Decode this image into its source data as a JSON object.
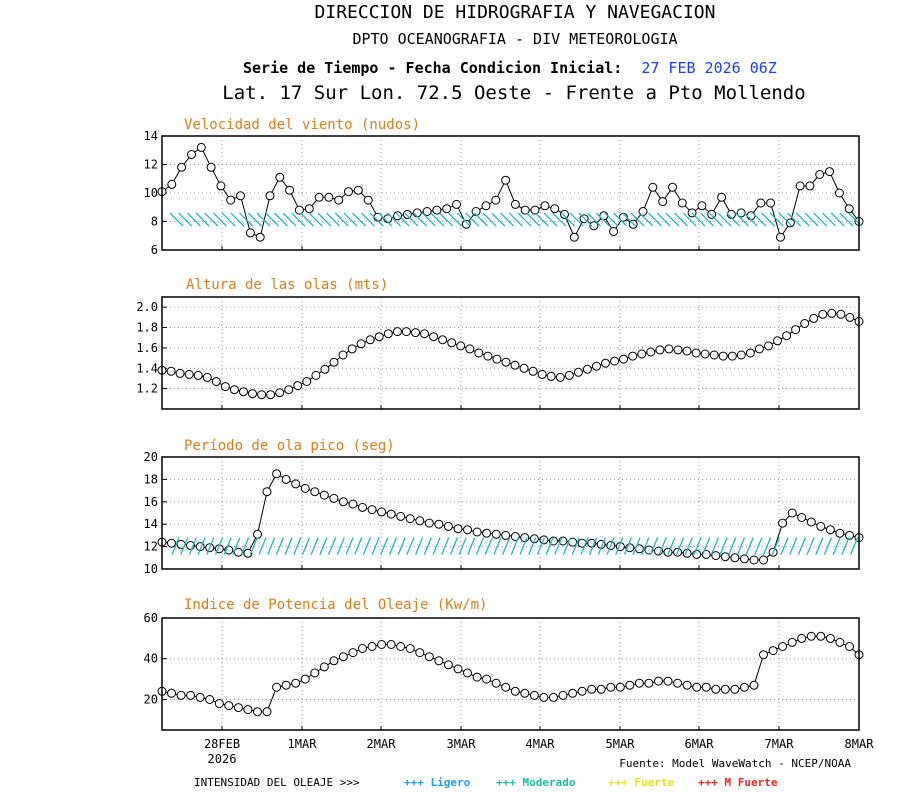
{
  "header": {
    "line1": "DIRECCION DE HIDROGRAFIA Y NAVEGACION",
    "line2": "DPTO OCEANOGRAFIA - DIV METEOROLOGIA",
    "line3_label": "Serie de Tiempo - Fecha Condicion Inicial:",
    "line3_date": "27 FEB 2026 06Z",
    "line4": "Lat. 17 Sur  Lon. 72.5 Oeste - Frente a Pto Mollendo"
  },
  "colors": {
    "title_orange": "#e07b19",
    "date_blue": "#1a3cff",
    "arrow_teal": "#19b9c0",
    "ligero": "#1e9bff",
    "moderado": "#19c0a6",
    "fuerte": "#e8e021",
    "m_fuerte": "#ff2020"
  },
  "x_axis": {
    "ticks": [
      "28FEB",
      "1MAR",
      "2MAR",
      "3MAR",
      "4MAR",
      "5MAR",
      "6MAR",
      "7MAR",
      "8MAR"
    ],
    "year": "2026"
  },
  "footer": {
    "source": "Fuente: Model WaveWatch - NCEP/NOAA",
    "legend_label": "INTENSIDAD DEL OLEAJE >>>",
    "legend_items": [
      {
        "label": "+++ Ligero",
        "color": "#1e9bff"
      },
      {
        "label": "+++ Moderado",
        "color": "#19c0a6"
      },
      {
        "label": "+++ Fuerte",
        "color": "#e8e021"
      },
      {
        "label": "+++ M Fuerte",
        "color": "#ff2020"
      }
    ]
  },
  "chart_data": [
    {
      "type": "line",
      "title": "Velocidad del viento (nudos)",
      "ylim": [
        6,
        14
      ],
      "yticks": [
        6,
        8,
        10,
        12,
        14
      ],
      "grid": true,
      "values": [
        10.1,
        10.6,
        11.8,
        12.7,
        13.2,
        11.8,
        10.5,
        9.5,
        9.8,
        7.2,
        6.9,
        9.8,
        11.1,
        10.2,
        8.8,
        8.9,
        9.7,
        9.7,
        9.5,
        10.1,
        10.2,
        9.5,
        8.3,
        8.2,
        8.4,
        8.5,
        8.6,
        8.7,
        8.8,
        8.9,
        9.2,
        7.8,
        8.7,
        9.1,
        9.5,
        10.9,
        9.2,
        8.8,
        8.8,
        9.1,
        8.9,
        8.5,
        6.9,
        8.2,
        7.7,
        8.4,
        7.3,
        8.3,
        7.8,
        8.7,
        10.4,
        9.4,
        10.4,
        9.3,
        8.6,
        9.1,
        8.5,
        9.7,
        8.5,
        8.6,
        8.4,
        9.3,
        9.3,
        6.9,
        7.9,
        10.5,
        10.5,
        11.3,
        11.5,
        10.0,
        8.9,
        8.0
      ],
      "arrows": "wind-direction"
    },
    {
      "type": "line",
      "title": "Altura de las olas (mts)",
      "ylim": [
        1.0,
        2.1
      ],
      "yticks": [
        1.2,
        1.4,
        1.6,
        1.8,
        2.0
      ],
      "grid": true,
      "values": [
        1.38,
        1.37,
        1.35,
        1.34,
        1.33,
        1.31,
        1.27,
        1.22,
        1.19,
        1.17,
        1.15,
        1.14,
        1.14,
        1.16,
        1.19,
        1.23,
        1.27,
        1.33,
        1.39,
        1.46,
        1.53,
        1.59,
        1.64,
        1.68,
        1.71,
        1.74,
        1.76,
        1.76,
        1.75,
        1.74,
        1.71,
        1.68,
        1.65,
        1.62,
        1.59,
        1.55,
        1.52,
        1.49,
        1.46,
        1.43,
        1.4,
        1.37,
        1.34,
        1.32,
        1.31,
        1.33,
        1.36,
        1.39,
        1.42,
        1.45,
        1.47,
        1.49,
        1.52,
        1.54,
        1.56,
        1.58,
        1.59,
        1.58,
        1.57,
        1.55,
        1.54,
        1.53,
        1.52,
        1.52,
        1.53,
        1.55,
        1.59,
        1.62,
        1.67,
        1.72,
        1.78,
        1.84,
        1.89,
        1.93,
        1.94,
        1.93,
        1.9,
        1.86
      ]
    },
    {
      "type": "line",
      "title": "Período de ola pico (seg)",
      "ylim": [
        10,
        20
      ],
      "yticks": [
        10,
        12,
        14,
        16,
        18,
        20
      ],
      "grid": true,
      "values": [
        12.4,
        12.3,
        12.2,
        12.1,
        12.0,
        11.9,
        11.8,
        11.7,
        11.5,
        11.4,
        13.1,
        16.9,
        18.5,
        18.0,
        17.6,
        17.2,
        16.9,
        16.6,
        16.3,
        16.0,
        15.8,
        15.5,
        15.3,
        15.1,
        14.9,
        14.7,
        14.5,
        14.3,
        14.1,
        14.0,
        13.8,
        13.6,
        13.5,
        13.3,
        13.2,
        13.1,
        13.0,
        12.9,
        12.8,
        12.7,
        12.6,
        12.5,
        12.5,
        12.4,
        12.3,
        12.3,
        12.2,
        12.1,
        12.0,
        11.9,
        11.8,
        11.7,
        11.6,
        11.5,
        11.5,
        11.4,
        11.3,
        11.3,
        11.2,
        11.1,
        11.0,
        10.9,
        10.8,
        10.8,
        11.5,
        14.1,
        15.0,
        14.6,
        14.2,
        13.8,
        13.5,
        13.2,
        13.0,
        12.8
      ],
      "arrows": "wave-direction"
    },
    {
      "type": "line",
      "title": "Indice de Potencia del Oleaje (Kw/m)",
      "ylim": [
        5,
        60
      ],
      "yticks": [
        20,
        40,
        60
      ],
      "grid": true,
      "values": [
        24,
        23,
        22,
        22,
        21,
        20,
        18,
        17,
        16,
        15,
        14,
        14,
        26,
        27,
        28,
        30,
        33,
        36,
        39,
        41,
        43,
        45,
        46,
        47,
        47,
        46,
        45,
        43,
        41,
        39,
        37,
        35,
        33,
        31,
        30,
        28,
        26,
        24,
        23,
        22,
        21,
        21,
        22,
        23,
        24,
        25,
        25,
        26,
        26,
        27,
        28,
        28,
        29,
        29,
        28,
        27,
        26,
        26,
        25,
        25,
        25,
        26,
        27,
        42,
        44,
        46,
        48,
        50,
        51,
        51,
        50,
        48,
        46,
        42
      ]
    }
  ]
}
